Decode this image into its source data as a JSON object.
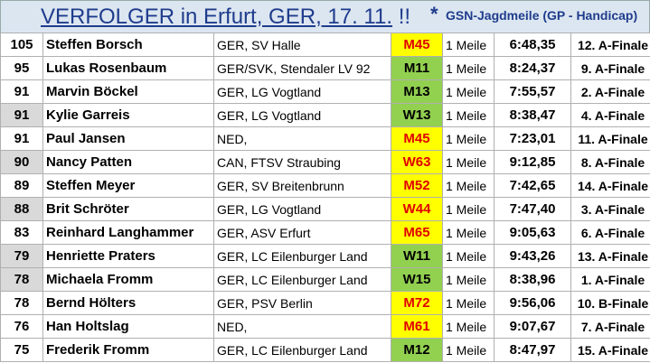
{
  "header": {
    "title": "VERFOLGER in Erfurt, GER, 17. 11.",
    "exclaim": "!!",
    "marker": "*",
    "subtitle": "GSN-Jagdmeile (GP - Handicap)"
  },
  "table": {
    "rows": [
      [
        105,
        "Steffen Borsch",
        "GER, SV Halle",
        "M45",
        "1 Meile",
        "6:48,35",
        "12. A-Finale"
      ],
      [
        95,
        "Lukas Rosenbaum",
        "GER/SVK, Stendaler LV 92",
        "M11",
        "1 Meile",
        "8:24,37",
        "9. A-Finale"
      ],
      [
        91,
        "Marvin Böckel",
        "GER, LG Vogtland",
        "M13",
        "1 Meile",
        "7:55,57",
        "2. A-Finale"
      ],
      [
        91,
        "Kylie Garreis",
        "GER, LG Vogtland",
        "W13",
        "1 Meile",
        "8:38,47",
        "4. A-Finale"
      ],
      [
        91,
        "Paul Jansen",
        "NED,",
        "M45",
        "1 Meile",
        "7:23,01",
        "11. A-Finale"
      ],
      [
        90,
        "Nancy Patten",
        "CAN, FTSV Straubing",
        "W63",
        "1 Meile",
        "9:12,85",
        "8. A-Finale"
      ],
      [
        89,
        "Steffen Meyer",
        "GER, SV Breitenbrunn",
        "M52",
        "1 Meile",
        "7:42,65",
        "14. A-Finale"
      ],
      [
        88,
        "Brit Schröter",
        "GER, LG Vogtland",
        "W44",
        "1 Meile",
        "7:47,40",
        "3. A-Finale"
      ],
      [
        83,
        "Reinhard Langhammer",
        "GER, ASV Erfurt",
        "M65",
        "1 Meile",
        "9:05,63",
        "6. A-Finale"
      ],
      [
        79,
        "Henriette Praters",
        "GER, LC Eilenburger Land",
        "W11",
        "1 Meile",
        "9:43,26",
        "13. A-Finale"
      ],
      [
        78,
        "Michaela Fromm",
        "GER, LC Eilenburger Land",
        "W15",
        "1 Meile",
        "8:38,96",
        "1. A-Finale"
      ],
      [
        78,
        "Bernd Hölters",
        "GER, PSV Berlin",
        "M72",
        "1 Meile",
        "9:56,06",
        "10. B-Finale"
      ],
      [
        76,
        "Han Holtslag",
        "NED,",
        "M61",
        "1 Meile",
        "9:07,67",
        "7. A-Finale"
      ],
      [
        75,
        "Frederik Fromm",
        "GER, LC Eilenburger Land",
        "M12",
        "1 Meile",
        "8:47,97",
        "15. A-Finale"
      ]
    ]
  }
}
